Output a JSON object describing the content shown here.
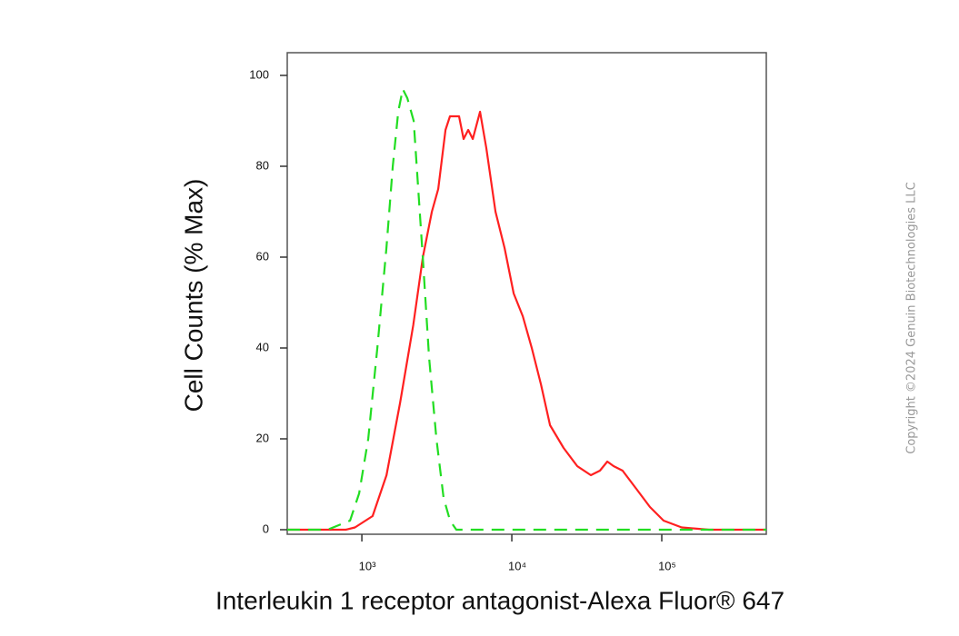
{
  "chart_data": {
    "type": "line",
    "xlabel": "Interleukin 1 receptor antagonist-Alexa Fluor® 647",
    "ylabel": "Cell Counts (% Max)",
    "note": "Copyright ©2024 Genuin Biotechnologies LLC",
    "xscale": "log",
    "xlim": [
      318,
      497700
    ],
    "ylim": [
      -1,
      105
    ],
    "xticks": [
      {
        "value": 1000,
        "label": "10³"
      },
      {
        "value": 10000,
        "label": "10⁴"
      },
      {
        "value": 100000,
        "label": "10⁵"
      }
    ],
    "yticks": [
      0,
      20,
      40,
      60,
      80,
      100
    ],
    "series": [
      {
        "color": "#ff2020",
        "style": "solid",
        "x": [
          318,
          590,
          780,
          900,
          1180,
          1460,
          1800,
          2200,
          2550,
          2930,
          3230,
          3610,
          3870,
          4450,
          4770,
          5120,
          5490,
          6140,
          6760,
          7780,
          8950,
          10290,
          11830,
          13590,
          15630,
          17980,
          22150,
          27300,
          33650,
          38700,
          43300,
          47700,
          54800,
          67600,
          83400,
          102800,
          135800,
          206500,
          497700
        ],
        "values": [
          0,
          0,
          0,
          0.5,
          3,
          12,
          28,
          45,
          60,
          70,
          75,
          88,
          91,
          91,
          86,
          88,
          86,
          92,
          84,
          70,
          62,
          52,
          47,
          40,
          32,
          23,
          18,
          14,
          12,
          13,
          15,
          14,
          13,
          9,
          5,
          2,
          0.5,
          0,
          0
        ]
      },
      {
        "color": "#22dd22",
        "style": "dashed",
        "x": [
          318,
          590,
          834,
          959,
          1103,
          1268,
          1458,
          1607,
          1748,
          1874,
          2009,
          2215,
          2375,
          2547,
          2807,
          3141,
          3510,
          3871,
          4266,
          497700
        ],
        "values": [
          0,
          0,
          2,
          8,
          20,
          40,
          62,
          80,
          92,
          97,
          95,
          90,
          75,
          60,
          38,
          20,
          7,
          2,
          0,
          0
        ]
      }
    ]
  }
}
